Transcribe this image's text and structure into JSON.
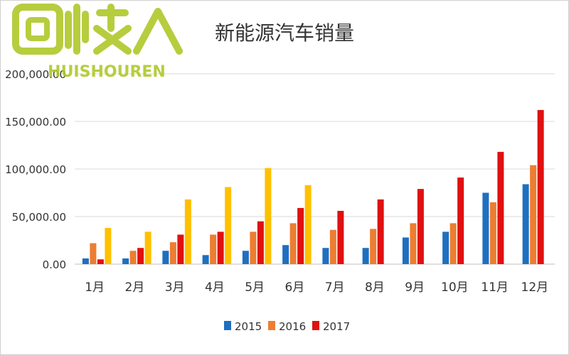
{
  "chart_data": {
    "type": "bar",
    "title": "新能源汽车销量",
    "categories": [
      "1月",
      "2月",
      "3月",
      "4月",
      "5月",
      "6月",
      "7月",
      "8月",
      "9月",
      "10月",
      "11月",
      "12月"
    ],
    "series": [
      {
        "name": "2015",
        "color": "#1f6fc0",
        "values": [
          6000,
          6000,
          14000,
          9500,
          14000,
          20000,
          17000,
          17000,
          28000,
          34000,
          75000,
          84000
        ]
      },
      {
        "name": "2016",
        "color": "#ed7d31",
        "values": [
          22000,
          14000,
          23000,
          31000,
          34000,
          43000,
          36000,
          37000,
          43000,
          43000,
          65000,
          104000
        ]
      },
      {
        "name": "2017",
        "color": "#e01010",
        "values": [
          5000,
          17000,
          31000,
          34000,
          45000,
          59000,
          56000,
          68000,
          79000,
          91000,
          118000,
          162000
        ]
      },
      {
        "name": "",
        "color": "#ffc000",
        "values": [
          38000,
          34000,
          68000,
          81000,
          101000,
          83000,
          null,
          null,
          null,
          null,
          null,
          null
        ]
      }
    ],
    "yticks": [
      "0.00",
      "50,000.00",
      "100,000.00",
      "150,000.00",
      "200,000.00"
    ],
    "ylim": [
      0,
      200000
    ],
    "grid": true,
    "legend_position": "bottom"
  },
  "watermark": {
    "big": "回收",
    "small": "HUISHOUREN",
    "color": "#b0c82a"
  }
}
